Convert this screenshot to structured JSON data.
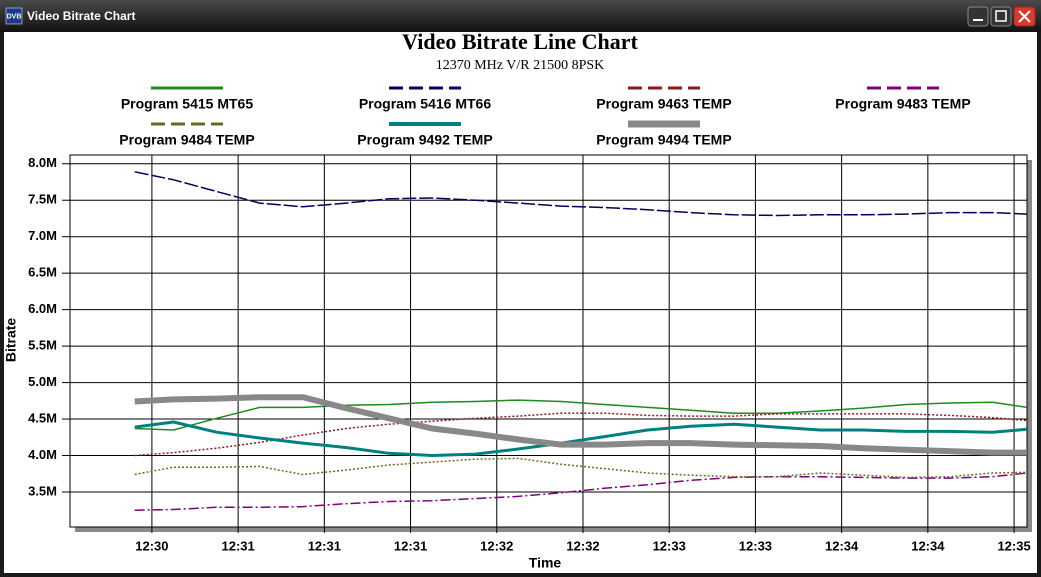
{
  "window": {
    "title": "Video Bitrate Chart",
    "icon": "DVB"
  },
  "chart_data": {
    "type": "line",
    "title": "Video Bitrate Line Chart",
    "subtitle": "12370 MHz V/R 21500 8PSK",
    "y_label": "Bitrate",
    "x_label": "Time",
    "grid": true,
    "x": [
      -0.2,
      0.25,
      0.75,
      1.25,
      1.75,
      2.25,
      2.75,
      3.25,
      3.75,
      4.25,
      4.75,
      5.25,
      5.75,
      6.25,
      6.75,
      7.25,
      7.75,
      8.25,
      8.75,
      9.25,
      9.75,
      10.15
    ],
    "xlim": [
      -0.95,
      10.15
    ],
    "xticks": [
      {
        "value": 0,
        "label": "12:30"
      },
      {
        "value": 1,
        "label": "12:31"
      },
      {
        "value": 2,
        "label": "12:31"
      },
      {
        "value": 3,
        "label": "12:31"
      },
      {
        "value": 4,
        "label": "12:32"
      },
      {
        "value": 5,
        "label": "12:32"
      },
      {
        "value": 6,
        "label": "12:33"
      },
      {
        "value": 7,
        "label": "12:33"
      },
      {
        "value": 8,
        "label": "12:34"
      },
      {
        "value": 9,
        "label": "12:34"
      },
      {
        "value": 10,
        "label": "12:35"
      }
    ],
    "ylim": [
      3020000,
      8120000
    ],
    "yticks": [
      {
        "value": 3500000,
        "label": "3.5M"
      },
      {
        "value": 4000000,
        "label": "4.0M"
      },
      {
        "value": 4500000,
        "label": "4.5M"
      },
      {
        "value": 5000000,
        "label": "5.0M"
      },
      {
        "value": 5500000,
        "label": "5.5M"
      },
      {
        "value": 6000000,
        "label": "6.0M"
      },
      {
        "value": 6500000,
        "label": "6.5M"
      },
      {
        "value": 7000000,
        "label": "7.0M"
      },
      {
        "value": 7500000,
        "label": "7.5M"
      },
      {
        "value": 8000000,
        "label": "8.0M"
      }
    ],
    "series": [
      {
        "name": "Program 5415 MT65",
        "color": "#1f8a1f",
        "width": 1.5,
        "dash": "solid",
        "values": [
          4370000,
          4350000,
          4510000,
          4660000,
          4660000,
          4690000,
          4700000,
          4730000,
          4740000,
          4760000,
          4740000,
          4700000,
          4660000,
          4620000,
          4580000,
          4580000,
          4610000,
          4650000,
          4700000,
          4720000,
          4730000,
          4660000
        ]
      },
      {
        "name": "Program 5416 MT66",
        "color": "#000060",
        "width": 1.5,
        "dash": "dashed",
        "values": [
          7890000,
          7780000,
          7620000,
          7460000,
          7410000,
          7460000,
          7520000,
          7530000,
          7500000,
          7460000,
          7420000,
          7400000,
          7370000,
          7330000,
          7300000,
          7290000,
          7300000,
          7300000,
          7310000,
          7330000,
          7330000,
          7310000
        ]
      },
      {
        "name": "Program 9463 TEMP",
        "color": "#8b1a1a",
        "width": 1.5,
        "dash": "dotted",
        "values": [
          4000000,
          4040000,
          4100000,
          4180000,
          4280000,
          4370000,
          4430000,
          4470000,
          4510000,
          4540000,
          4580000,
          4580000,
          4550000,
          4540000,
          4540000,
          4570000,
          4570000,
          4570000,
          4570000,
          4550000,
          4520000,
          4480000
        ]
      },
      {
        "name": "Program 9483 TEMP",
        "color": "#800080",
        "width": 1.5,
        "dash": "dashdot",
        "values": [
          3250000,
          3260000,
          3290000,
          3290000,
          3300000,
          3340000,
          3370000,
          3380000,
          3410000,
          3440000,
          3490000,
          3550000,
          3600000,
          3660000,
          3700000,
          3710000,
          3710000,
          3700000,
          3690000,
          3690000,
          3710000,
          3760000
        ]
      },
      {
        "name": "Program 9484 TEMP",
        "color": "#6b6b20",
        "width": 1.5,
        "dash": "dotted",
        "values": [
          3740000,
          3840000,
          3840000,
          3850000,
          3740000,
          3800000,
          3870000,
          3910000,
          3950000,
          3960000,
          3880000,
          3820000,
          3760000,
          3730000,
          3710000,
          3710000,
          3760000,
          3730000,
          3700000,
          3710000,
          3760000,
          3770000
        ]
      },
      {
        "name": "Program 9492 TEMP",
        "color": "#008080",
        "width": 3,
        "dash": "solid",
        "values": [
          4390000,
          4460000,
          4320000,
          4240000,
          4170000,
          4110000,
          4030000,
          4000000,
          4020000,
          4090000,
          4170000,
          4260000,
          4350000,
          4400000,
          4430000,
          4390000,
          4350000,
          4350000,
          4330000,
          4330000,
          4320000,
          4360000
        ]
      },
      {
        "name": "Program 9494 TEMP",
        "color": "#888888",
        "width": 6,
        "dash": "solid",
        "values": [
          4740000,
          4770000,
          4780000,
          4800000,
          4800000,
          4650000,
          4510000,
          4370000,
          4300000,
          4220000,
          4150000,
          4150000,
          4170000,
          4170000,
          4150000,
          4140000,
          4130000,
          4100000,
          4080000,
          4060000,
          4040000,
          4040000
        ]
      }
    ]
  }
}
